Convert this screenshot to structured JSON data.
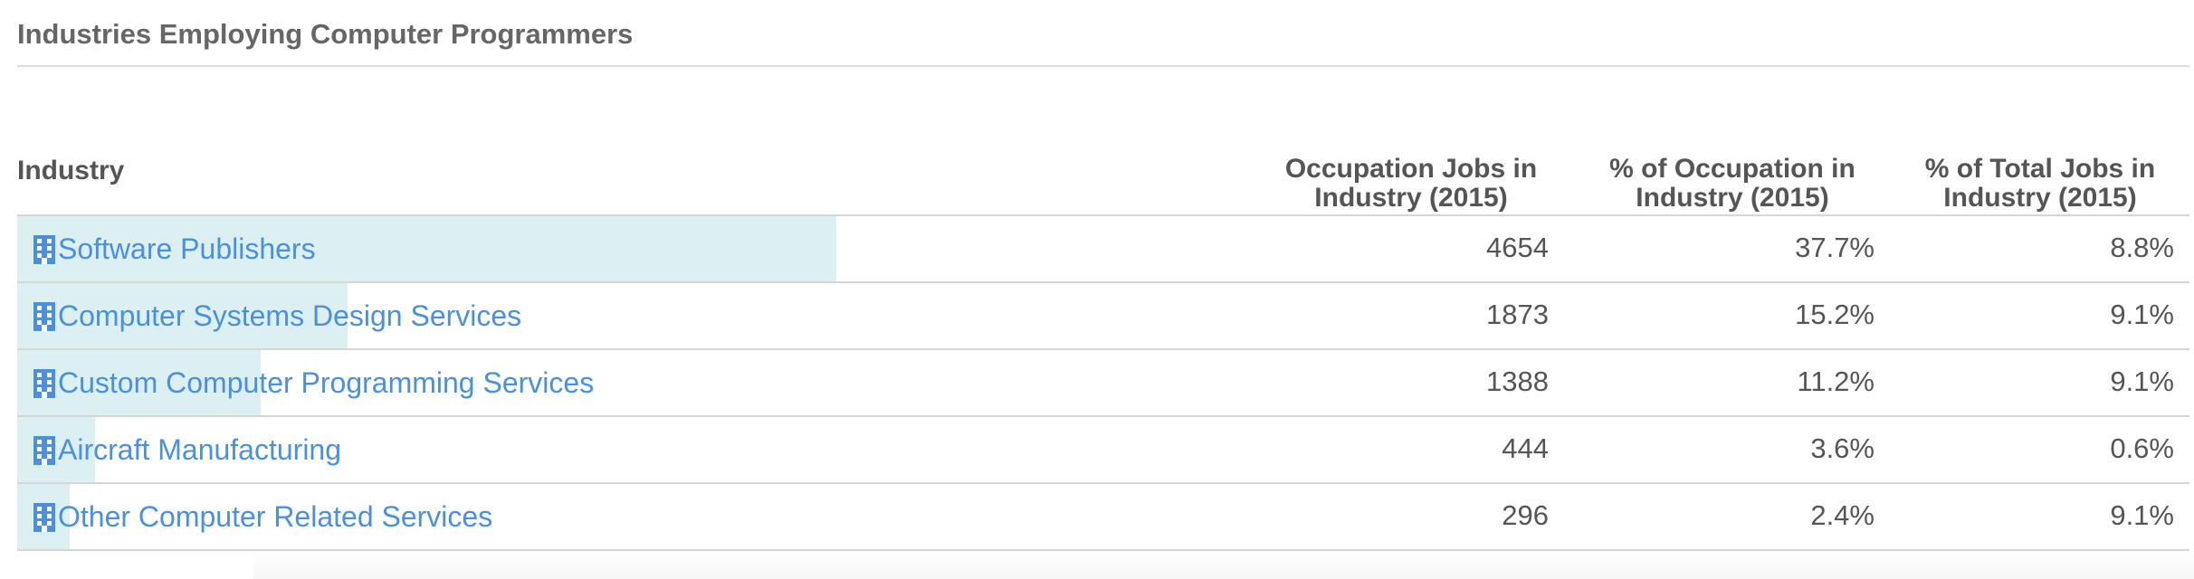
{
  "title": "Industries Employing Computer Programmers",
  "table": {
    "headers": {
      "industry": "Industry",
      "jobs": [
        "Occupation Jobs in",
        "Industry (2015)"
      ],
      "pct_occupation": [
        "% of Occupation in",
        "Industry (2015)"
      ],
      "pct_total": [
        "% of Total Jobs in",
        "Industry (2015)"
      ]
    },
    "rows": [
      {
        "industry": "Software Publishers",
        "jobs": "4654",
        "pct_occupation": "37.7%",
        "pct_total": "8.8%",
        "bar_fraction": 0.377
      },
      {
        "industry": "Computer Systems Design Services",
        "jobs": "1873",
        "pct_occupation": "15.2%",
        "pct_total": "9.1%",
        "bar_fraction": 0.152
      },
      {
        "industry": "Custom Computer Programming Services",
        "jobs": "1388",
        "pct_occupation": "11.2%",
        "pct_total": "9.1%",
        "bar_fraction": 0.112
      },
      {
        "industry": "Aircraft Manufacturing",
        "jobs": "444",
        "pct_occupation": "3.6%",
        "pct_total": "0.6%",
        "bar_fraction": 0.036
      },
      {
        "industry": "Other Computer Related Services",
        "jobs": "296",
        "pct_occupation": "2.4%",
        "pct_total": "9.1%",
        "bar_fraction": 0.024
      }
    ]
  },
  "icons": {
    "industry_row": "building-icon"
  },
  "colors": {
    "link": "#4a90e2",
    "bar_fill": "#dceff1",
    "text": "#555555"
  }
}
